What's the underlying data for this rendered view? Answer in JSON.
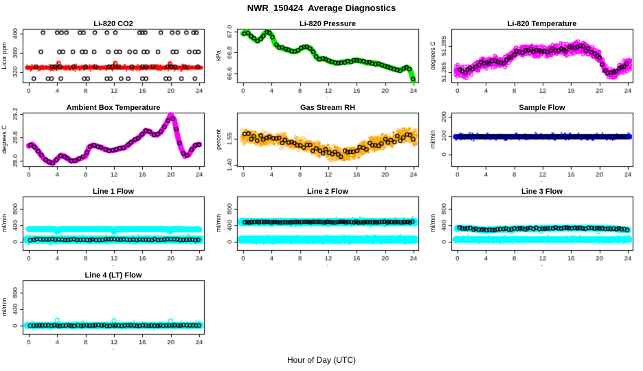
{
  "figure": {
    "title": "NWR_150424  Average Diagnostics",
    "xlabel": "Hour of Day (UTC)"
  },
  "chart_data": [
    {
      "type": "scatter",
      "title": "Li-820 CO2",
      "ylabel": "Licor ppm",
      "xlabel": ".",
      "xlim": [
        -0.87,
        24.68
      ],
      "ylim": [
        298,
        410
      ],
      "xticks": [
        "0",
        "4",
        "8",
        "12",
        "16",
        "20",
        "24"
      ],
      "yticks": [
        "320",
        "360",
        "400"
      ],
      "series": [
        {
          "name": "minute CO2 baseline",
          "style": "band",
          "color": "#ff0000",
          "y": 329,
          "hw": 3,
          "fuzz": 400
        },
        {
          "name": "calibration spikes",
          "style": "streaks",
          "color": "#ff0000",
          "lines": [
            [
              4.1,
              329,
              341
            ],
            [
              12.1,
              329,
              341
            ],
            [
              19.85,
              329,
              340
            ]
          ]
        },
        {
          "name": "calibration spike markers",
          "style": "pts",
          "color": "#ff0000",
          "size": 2.6,
          "points": [
            [
              4.2,
              338.5
            ],
            [
              12.2,
              338.5
            ],
            [
              19.9,
              337.5
            ]
          ]
        },
        {
          "name": "high cal averages",
          "style": "row",
          "color": "#000000",
          "y": 402,
          "x": [
            2,
            4,
            4.6,
            5.3,
            7.2,
            7.7,
            9.3,
            11,
            12.2,
            15.6,
            16,
            16.4,
            18.6,
            20.2,
            21,
            22.2,
            23.2,
            23.6
          ]
        },
        {
          "name": "mid cal averages",
          "style": "row",
          "color": "#000000",
          "y": 362,
          "x": [
            1.7,
            4.3,
            4.8,
            6.2,
            7.5,
            8,
            9.2,
            11.2,
            12.3,
            12.8,
            14.2,
            15,
            16.2,
            16.7,
            18.2,
            20.3,
            20.8,
            22.6,
            23.4,
            23.9
          ]
        },
        {
          "name": "ambient averages",
          "style": "row",
          "color": "#000000",
          "y": 331,
          "x": [
            1,
            3.3,
            3.7,
            4.4,
            6.3,
            8,
            9.4,
            11.3,
            11.8,
            12.6,
            14.5,
            16,
            16.5,
            17.5,
            19.5,
            20.1,
            20.6,
            22,
            23.8
          ]
        },
        {
          "name": "low cal averages",
          "style": "row",
          "color": "#000000",
          "y": 306,
          "x": [
            0.7,
            2.7,
            3.2,
            4.5,
            7.8,
            8.3,
            11,
            11.5,
            13,
            14,
            16,
            16.5,
            19.3,
            19.8,
            21.5,
            23.4
          ]
        }
      ]
    },
    {
      "type": "scatter",
      "title": "Li-820 Pressure",
      "ylabel": "kPa",
      "xlabel": ".",
      "xlim": [
        -0.87,
        24.68
      ],
      "ylim": [
        66.515,
        67.025
      ],
      "xticks": [
        "0",
        "4",
        "8",
        "12",
        "16",
        "20",
        "24"
      ],
      "yticks": [
        "66.6",
        "66.8",
        "67.0"
      ],
      "trend": {
        "x": [
          0,
          0.5,
          1,
          1.5,
          2,
          2.5,
          3,
          3.5,
          4,
          4.5,
          5,
          5.5,
          6,
          6.5,
          7,
          7.5,
          8,
          8.5,
          9,
          9.5,
          10,
          10.5,
          11,
          11.5,
          12,
          12.5,
          13,
          13.5,
          14,
          14.5,
          15,
          15.5,
          16,
          16.5,
          17,
          17.5,
          18,
          18.5,
          19,
          19.5,
          20,
          20.5,
          21,
          21.5,
          22,
          22.5,
          23,
          23.5,
          24
        ],
        "y": [
          66.98,
          67.0,
          66.96,
          66.93,
          66.91,
          66.93,
          66.98,
          67.0,
          66.97,
          66.88,
          66.85,
          66.84,
          66.83,
          66.82,
          66.81,
          66.81,
          66.83,
          66.85,
          66.85,
          66.84,
          66.79,
          66.74,
          66.74,
          66.74,
          66.72,
          66.71,
          66.7,
          66.7,
          66.71,
          66.71,
          66.71,
          66.72,
          66.73,
          66.72,
          66.71,
          66.7,
          66.7,
          66.7,
          66.69,
          66.68,
          66.67,
          66.66,
          66.65,
          66.64,
          66.63,
          66.64,
          66.66,
          66.64,
          66.53
        ]
      },
      "series": [
        {
          "name": "minute pressure",
          "style": "band",
          "color": "#00ee00",
          "lw": 8,
          "fuzz": 600,
          "fuzzpx": 3.5
        },
        {
          "name": "averages",
          "style": "seqpts",
          "color": "#000000",
          "n": 55,
          "jit": 2
        }
      ]
    },
    {
      "type": "scatter",
      "title": "Li-820 Temperature",
      "ylabel": "degrees C",
      "xlabel": ".",
      "xlim": [
        -0.87,
        24.68
      ],
      "ylim": [
        51.257,
        51.298
      ],
      "xticks": [
        "0",
        "4",
        "8",
        "12",
        "16",
        "20",
        "24"
      ],
      "yticks": [
        "51.265",
        "51.285"
      ],
      "trend": {
        "x": [
          0,
          1,
          2,
          3,
          4,
          5,
          6,
          7,
          8,
          9,
          10,
          11,
          12,
          13,
          14,
          15,
          16,
          17,
          18,
          19,
          20,
          21,
          22,
          23,
          24
        ],
        "y": [
          51.266,
          51.2645,
          51.267,
          51.27,
          51.2725,
          51.273,
          51.272,
          51.2745,
          51.28,
          51.281,
          51.282,
          51.281,
          51.281,
          51.281,
          51.282,
          51.282,
          51.283,
          51.2845,
          51.283,
          51.28,
          51.277,
          51.2645,
          51.264,
          51.268,
          51.2705
        ]
      },
      "series": [
        {
          "name": "minute temperature cloud",
          "style": "cloud",
          "color": "#ff00ff",
          "marker": "circle",
          "n": 800,
          "jit": 10,
          "size": 2.2
        },
        {
          "name": "averages",
          "style": "seqpts",
          "color": "#000000",
          "n": 62,
          "jit": 4
        }
      ]
    },
    {
      "type": "scatter",
      "title": "Ambient Box Temperature",
      "ylabel": "degrees C",
      "xlabel": ".",
      "xlim": [
        -0.87,
        24.68
      ],
      "ylim": [
        27.86,
        29.235
      ],
      "xticks": [
        "0",
        "4",
        "8",
        "12",
        "16",
        "20",
        "24"
      ],
      "yticks": [
        "28.0",
        "28.6",
        "29.2"
      ],
      "trend": {
        "x": [
          0,
          0.5,
          1,
          1.5,
          2,
          2.5,
          3,
          3.5,
          4,
          4.5,
          5,
          5.5,
          6,
          6.5,
          7,
          7.5,
          8,
          8.5,
          9,
          9.5,
          10,
          10.5,
          11,
          11.5,
          12,
          12.5,
          13,
          13.5,
          14,
          14.5,
          15,
          15.5,
          16,
          16.5,
          17,
          17.5,
          18,
          18.5,
          19,
          19.5,
          20,
          20.5,
          21,
          21.5,
          22,
          22.5,
          23,
          23.5,
          24
        ],
        "y": [
          28.38,
          28.42,
          28.32,
          28.2,
          28.08,
          28.0,
          27.95,
          27.96,
          28.05,
          28.14,
          28.12,
          28.05,
          28.0,
          28.0,
          28.04,
          28.08,
          28.12,
          28.35,
          28.4,
          28.38,
          28.35,
          28.31,
          28.28,
          28.26,
          28.27,
          28.3,
          28.32,
          28.34,
          28.4,
          28.48,
          28.54,
          28.6,
          28.68,
          28.78,
          28.75,
          28.68,
          28.66,
          28.72,
          28.85,
          29.0,
          29.18,
          29.05,
          28.6,
          28.3,
          28.12,
          28.15,
          28.3,
          28.4,
          28.42
        ]
      },
      "series": [
        {
          "name": "minute box temperature",
          "style": "band",
          "color": "#ff00ff",
          "lw": 8,
          "fuzz": 500,
          "fuzzpx": 3
        },
        {
          "name": "averages",
          "style": "seqpts",
          "color": "#000000",
          "n": 46,
          "jit": 1.5
        }
      ]
    },
    {
      "type": "scatter",
      "title": "Gas Stream RH",
      "ylabel": "percent",
      "xlabel": ".",
      "xlim": [
        -0.87,
        24.68
      ],
      "ylim": [
        1.392,
        1.7
      ],
      "xticks": [
        "0",
        "4",
        "8",
        "12",
        "16",
        "20",
        "24"
      ],
      "yticks": [
        "1.40",
        "1.55"
      ],
      "trend": {
        "x": [
          0,
          1,
          2,
          3,
          4,
          5,
          6,
          7,
          8,
          9,
          10,
          11,
          12,
          13,
          14,
          15,
          16,
          17,
          18,
          19,
          20,
          21,
          22,
          23,
          24
        ],
        "y": [
          1.565,
          1.57,
          1.552,
          1.548,
          1.545,
          1.548,
          1.54,
          1.52,
          1.515,
          1.512,
          1.5,
          1.48,
          1.47,
          1.462,
          1.46,
          1.47,
          1.478,
          1.498,
          1.515,
          1.525,
          1.535,
          1.545,
          1.558,
          1.575,
          1.56
        ]
      },
      "series": [
        {
          "name": "minute RH cloud",
          "style": "cloud",
          "color": "#ffa500",
          "marker": "diamond",
          "n": 850,
          "jit": 12,
          "size": 2.6,
          "fillfrac": 0.3
        },
        {
          "name": "averages",
          "style": "seqpts",
          "color": "#000000",
          "n": 55,
          "jit": 6
        }
      ]
    },
    {
      "type": "scatter",
      "title": "Sample Flow",
      "ylabel": "ml/min",
      "xlabel": ".",
      "xlim": [
        -0.87,
        24.68
      ],
      "ylim": [
        -62,
        222
      ],
      "xticks": [
        "0",
        "4",
        "8",
        "12",
        "16",
        "20",
        "24"
      ],
      "yticks": [
        "0",
        "100",
        "200"
      ],
      "series": [
        {
          "name": "minute sample flow",
          "style": "band",
          "color": "#0000ff",
          "y": 95,
          "hw": 4,
          "fuzz": 300
        },
        {
          "name": "averages",
          "style": "seqpts",
          "color": "#000000",
          "y": 95,
          "n": 58,
          "jit": 0.8
        }
      ]
    },
    {
      "type": "scatter",
      "title": "Line 1 Flow",
      "ylabel": "ml/min",
      "xlabel": ".",
      "xlim": [
        -0.87,
        24.68
      ],
      "ylim": [
        -200,
        1100
      ],
      "xticks": [
        "0",
        "4",
        "8",
        "12",
        "16",
        "20",
        "24"
      ],
      "yticks": [
        "0",
        "400",
        "800"
      ],
      "trend": {
        "x": [
          0,
          3.7,
          4,
          4.3,
          11.7,
          12,
          12.3,
          19.6,
          19.9,
          20.2,
          24
        ],
        "y": [
          310,
          310,
          250,
          310,
          308,
          252,
          308,
          308,
          255,
          308,
          300
        ]
      },
      "series": [
        {
          "name": "line flush flow",
          "style": "band",
          "color": "#00ffff",
          "lw": 9,
          "fuzz": 400,
          "fuzzpx": 3
        },
        {
          "name": "sample-period flow",
          "style": "band",
          "color": "#00ffff",
          "y": 55,
          "hw": 6,
          "fuzz": 300
        },
        {
          "name": "averages",
          "style": "seqpts",
          "color": "#000000",
          "y": 55,
          "n": 55,
          "jit": 1
        }
      ]
    },
    {
      "type": "scatter",
      "title": "Line 2 Flow",
      "ylabel": "ml/min",
      "xlabel": ".",
      "xlim": [
        -0.87,
        24.68
      ],
      "ylim": [
        -200,
        1100
      ],
      "xticks": [
        "0",
        "4",
        "8",
        "12",
        "16",
        "20",
        "24"
      ],
      "yticks": [
        "0",
        "400",
        "800"
      ],
      "series": [
        {
          "name": "line flush flow",
          "style": "band",
          "color": "#00ffff",
          "y": 480,
          "hw": 6,
          "fuzz": 300
        },
        {
          "name": "purge dips",
          "style": "pts",
          "color": "#00ffff",
          "size": 3,
          "points": [
            [
              4,
              422
            ],
            [
              12,
              420
            ],
            [
              20,
              420
            ]
          ]
        },
        {
          "name": "averages",
          "style": "seqpts",
          "color": "#000000",
          "y": 480,
          "n": 72,
          "jit": 0.8
        },
        {
          "name": "sample-period flow",
          "style": "band",
          "color": "#00ffff",
          "y": 55,
          "hw": 6,
          "fuzz": 300
        }
      ]
    },
    {
      "type": "scatter",
      "title": "Line 3 Flow",
      "ylabel": "ml/min",
      "xlabel": ".",
      "xlim": [
        -0.87,
        24.68
      ],
      "ylim": [
        -200,
        1100
      ],
      "xticks": [
        "0",
        "4",
        "8",
        "12",
        "16",
        "20",
        "24"
      ],
      "yticks": [
        "0",
        "400",
        "800"
      ],
      "trend": {
        "x": [
          0,
          1,
          2,
          3,
          4,
          5,
          6,
          7,
          8,
          9,
          10,
          11,
          12,
          13,
          14,
          15,
          16,
          17,
          18,
          19,
          20,
          21,
          22,
          23,
          24
        ],
        "y": [
          330,
          325,
          318,
          300,
          285,
          295,
          310,
          305,
          313,
          316,
          318,
          320,
          323,
          328,
          331,
          333,
          334,
          333,
          332,
          333,
          330,
          325,
          318,
          300,
          290
        ]
      },
      "series": [
        {
          "name": "line flush flow",
          "style": "band",
          "color": "#00ffff",
          "lw": 10,
          "fuzz": 400,
          "fuzzpx": 3
        },
        {
          "name": "purge dips",
          "style": "pts",
          "color": "#00ffff",
          "size": 3,
          "points": [
            [
              7.7,
              250
            ],
            [
              11.8,
              255
            ],
            [
              19.8,
              250
            ]
          ]
        },
        {
          "name": "averages",
          "style": "seqpts",
          "color": "#000000",
          "n": 62,
          "jit": 1.5
        },
        {
          "name": "sample-period flow",
          "style": "band",
          "color": "#00ffff",
          "y": 55,
          "hw": 5,
          "fuzz": 250
        }
      ]
    },
    {
      "type": "scatter",
      "title": "Line 4 (LT) Flow",
      "ylabel": "ml/min",
      "xlabel": ".",
      "xlim": [
        -0.87,
        24.68
      ],
      "ylim": [
        -200,
        1100
      ],
      "xticks": [
        "0",
        "4",
        "8",
        "12",
        "16",
        "20",
        "24"
      ],
      "yticks": [
        "0",
        "400",
        "800"
      ],
      "series": [
        {
          "name": "line flow",
          "style": "band",
          "color": "#00ffff",
          "y": 5,
          "hw": 5,
          "fuzz": 250
        },
        {
          "name": "averages",
          "style": "seqpts",
          "color": "#000000",
          "y": 5,
          "n": 58,
          "jit": 0.8
        },
        {
          "name": "purge spikes",
          "style": "pts",
          "color": "#00ffff",
          "size": 3,
          "points": [
            [
              4,
              130
            ],
            [
              12,
              122
            ],
            [
              20,
              115
            ]
          ]
        }
      ]
    }
  ]
}
